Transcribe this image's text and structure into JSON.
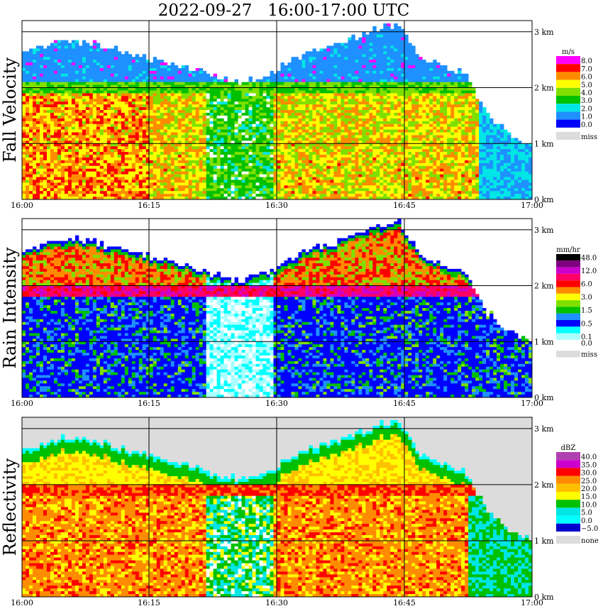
{
  "title": "2022-09-27   16:00-17:00 UTC",
  "x_ticks": [
    "16:00",
    "16:15",
    "16:30",
    "16:45",
    "17:00"
  ],
  "height_ticks": [
    "3 km",
    "2 km",
    "1 km",
    "0 km"
  ],
  "chart_data": [
    {
      "type": "heatmap",
      "ylabel": "Fall Velocity",
      "xlabel": "",
      "xlim": [
        "16:00",
        "17:00"
      ],
      "ylim_km": [
        0,
        3.2
      ],
      "grid": true,
      "legend_position": "right",
      "unit": "m/s",
      "legend": [
        {
          "label": "8.0",
          "color": "#ff00ff"
        },
        {
          "label": "7.0",
          "color": "#ff0000"
        },
        {
          "label": "6.0",
          "color": "#ff8c00"
        },
        {
          "label": "5.0",
          "color": "#ffff00"
        },
        {
          "label": "4.0",
          "color": "#7fe000"
        },
        {
          "label": "3.0",
          "color": "#00c000"
        },
        {
          "label": "2.0",
          "color": "#00e5e5"
        },
        {
          "label": "1.0",
          "color": "#1e90ff"
        },
        {
          "label": "0.0",
          "color": "#0000ff"
        },
        {
          "label": "miss",
          "color": "#dcdcdc"
        }
      ],
      "echo_top_km": [
        2.65,
        2.75,
        2.85,
        2.8,
        2.7,
        2.6,
        2.5,
        2.4,
        2.3,
        2.15,
        2.1,
        2.2,
        2.45,
        2.65,
        2.75,
        2.9,
        3.05,
        3.15,
        2.55,
        2.4,
        2.25,
        1.55,
        1.2,
        1.0
      ],
      "melting_layer_km": 1.95
    },
    {
      "type": "heatmap",
      "ylabel": "Rain Intensity",
      "xlabel": "",
      "xlim": [
        "16:00",
        "17:00"
      ],
      "ylim_km": [
        0,
        3.2
      ],
      "grid": true,
      "legend_position": "right",
      "unit": "mm/hr",
      "legend": [
        {
          "label": "48.0",
          "color": "#000000"
        },
        {
          "label": "",
          "color": "#800080"
        },
        {
          "label": "12.0",
          "color": "#cc00cc"
        },
        {
          "label": "",
          "color": "#ff0066"
        },
        {
          "label": "6.0",
          "color": "#ff0000"
        },
        {
          "label": "",
          "color": "#ff8c00"
        },
        {
          "label": "3.0",
          "color": "#ffff00"
        },
        {
          "label": "",
          "color": "#7fe000"
        },
        {
          "label": "1.5",
          "color": "#00c000"
        },
        {
          "label": "",
          "color": "#1e90ff"
        },
        {
          "label": "0.5",
          "color": "#0000ff"
        },
        {
          "label": "",
          "color": "#00ffff"
        },
        {
          "label": "0.1",
          "color": "#aaffff"
        },
        {
          "label": "0.0",
          "color": "#ffffff"
        },
        {
          "label": "miss",
          "color": "#dcdcdc"
        }
      ],
      "echo_top_km": [
        2.65,
        2.75,
        2.85,
        2.8,
        2.7,
        2.6,
        2.5,
        2.4,
        2.3,
        2.15,
        2.1,
        2.2,
        2.45,
        2.65,
        2.75,
        2.9,
        3.05,
        3.15,
        2.55,
        2.4,
        2.25,
        1.55,
        1.2,
        1.0
      ],
      "melting_layer_km": 1.9
    },
    {
      "type": "heatmap",
      "ylabel": "Reflectivity",
      "xlabel": "",
      "xlim": [
        "16:00",
        "17:00"
      ],
      "ylim_km": [
        0,
        3.2
      ],
      "grid": true,
      "legend_position": "right",
      "unit": "dBZ",
      "legend": [
        {
          "label": "40.0",
          "color": "#b040b0"
        },
        {
          "label": "35.0",
          "color": "#cc00cc"
        },
        {
          "label": "30.0",
          "color": "#ff0000"
        },
        {
          "label": "25.0",
          "color": "#ff8c00"
        },
        {
          "label": "20.0",
          "color": "#ffc000"
        },
        {
          "label": "15.0",
          "color": "#ffff00"
        },
        {
          "label": "10.0",
          "color": "#00c000"
        },
        {
          "label": "5.0",
          "color": "#00e5e5"
        },
        {
          "label": "0.0",
          "color": "#00ffff"
        },
        {
          "label": "−5.0",
          "color": "#0000cc"
        },
        {
          "label": "none",
          "color": "#dcdcdc"
        }
      ],
      "echo_top_km": [
        2.65,
        2.75,
        2.85,
        2.8,
        2.7,
        2.6,
        2.5,
        2.4,
        2.3,
        2.15,
        2.1,
        2.2,
        2.45,
        2.65,
        2.75,
        2.9,
        3.05,
        3.15,
        2.55,
        2.4,
        2.25,
        1.55,
        1.2,
        1.0
      ],
      "melting_layer_km": 1.9
    }
  ]
}
